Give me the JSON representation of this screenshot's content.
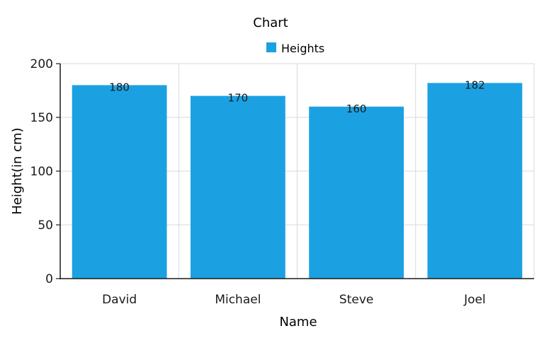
{
  "chart_data": {
    "type": "bar",
    "title": "Chart",
    "xlabel": "Name",
    "ylabel": "Height(in cm)",
    "categories": [
      "David",
      "Michael",
      "Steve",
      "Joel"
    ],
    "series": [
      {
        "name": "Heights",
        "values": [
          180,
          170,
          160,
          182
        ],
        "color": "#1BA1E2"
      }
    ],
    "ylim": [
      0,
      200
    ],
    "yticks": [
      0,
      50,
      100,
      150,
      200
    ],
    "grid": true,
    "legend": "top-center"
  }
}
